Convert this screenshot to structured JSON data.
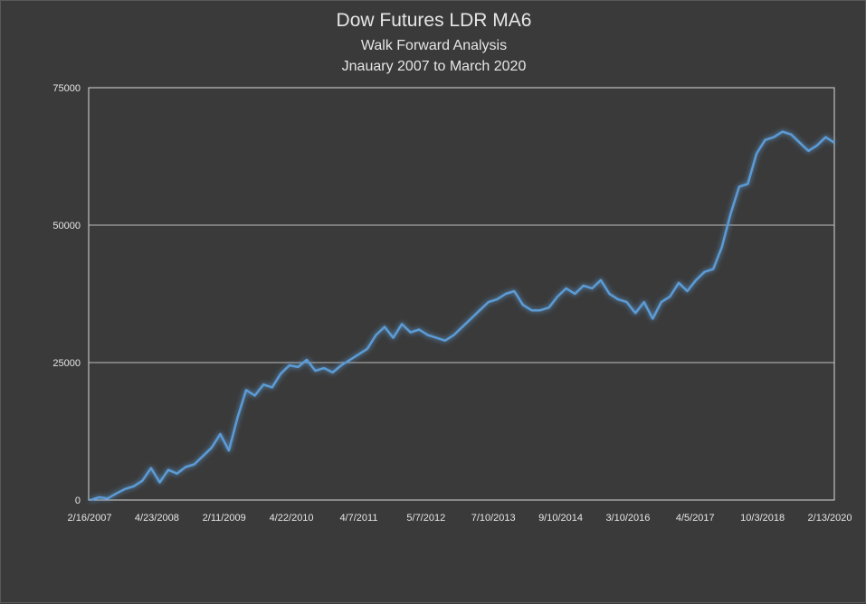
{
  "chart_data": {
    "type": "line",
    "title": "Dow Futures LDR MA6",
    "subtitle_1": "Walk Forward Analysis",
    "subtitle_2": "Jnauary 2007 to March 2020",
    "xlabel": "",
    "ylabel": "",
    "ylim": [
      0,
      75000
    ],
    "y_ticks": [
      "0",
      "25000",
      "50000",
      "75000"
    ],
    "x_ticks": [
      "2/16/2007",
      "4/23/2008",
      "2/11/2009",
      "4/22/2010",
      "4/7/2011",
      "5/7/2012",
      "7/10/2013",
      "9/10/2014",
      "3/10/2016",
      "4/5/2017",
      "10/3/2018",
      "2/13/2020"
    ],
    "grid": true,
    "legend": "none",
    "line_color": "#5b9bd5",
    "series": [
      {
        "values": [
          0,
          500,
          300,
          1200,
          2000,
          2500,
          3500,
          5800,
          3200,
          5500,
          4800,
          6000,
          6500,
          8000,
          9500,
          12000,
          9000,
          15000,
          20000,
          19000,
          21000,
          20500,
          23000,
          24500,
          24200,
          25500,
          23500,
          24000,
          23200,
          24500,
          25500,
          26500,
          27500,
          30000,
          31500,
          29500,
          32000,
          30500,
          31000,
          30000,
          29500,
          29000,
          30000,
          31500,
          33000,
          34500,
          36000,
          36500,
          37500,
          38000,
          35500,
          34500,
          34500,
          35000,
          37000,
          38500,
          37500,
          39000,
          38500,
          40000,
          37500,
          36500,
          36000,
          34000,
          36000,
          33000,
          36000,
          37000,
          39500,
          38000,
          40000,
          41500,
          42000,
          46000,
          52000,
          57000,
          57500,
          63000,
          65500,
          66000,
          67000,
          66500,
          65000,
          63500,
          64500,
          66000,
          65000
        ]
      }
    ]
  }
}
